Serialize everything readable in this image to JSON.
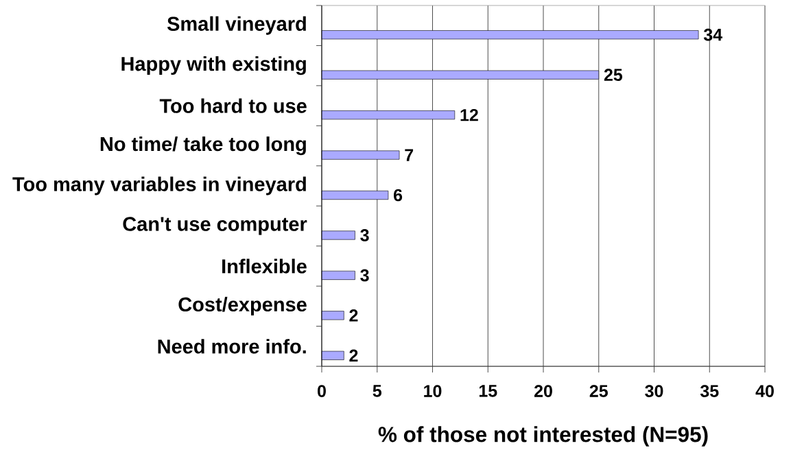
{
  "chart_data": {
    "type": "bar",
    "orientation": "horizontal",
    "categories": [
      "Small vineyard",
      "Happy with existing",
      "Too hard to use",
      "No time/ take too long",
      "Too many variables in vineyard",
      "Can't use computer",
      "Inflexible",
      "Cost/expense",
      "Need more info."
    ],
    "values": [
      34,
      25,
      12,
      7,
      6,
      3,
      3,
      2,
      2
    ],
    "color": "#aaaaff",
    "data_labels": true,
    "xlabel": "% of those not interested (N=95)",
    "xlim": [
      0,
      40
    ],
    "xticks": [
      0,
      5,
      10,
      15,
      20,
      25,
      30,
      35,
      40
    ],
    "grid": "x"
  }
}
